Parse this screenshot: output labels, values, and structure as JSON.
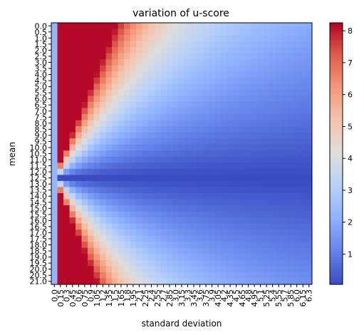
{
  "chart_data": {
    "type": "heatmap",
    "title": "variation of u-score",
    "xlabel": "standard deviation",
    "ylabel": "mean",
    "colormap": "coolwarm",
    "x_tick_labels": [
      "0.0",
      "0.15",
      "0.3",
      "0.45",
      "0.6",
      "0.75",
      "0.9",
      "1.05",
      "1.2",
      "1.35",
      "1.5",
      "1.65",
      "1.8",
      "1.95",
      "2.1",
      "2.25",
      "2.4",
      "2.55",
      "2.7",
      "2.85",
      "3.0",
      "3.15",
      "3.3",
      "3.45",
      "3.6",
      "3.75",
      "3.9",
      "4.05",
      "4.2",
      "4.35",
      "4.5",
      "4.65",
      "4.8",
      "4.95",
      "5.1",
      "5.25",
      "5.4",
      "5.55",
      "5.7",
      "5.85",
      "6.0",
      "6.15",
      "6.3"
    ],
    "y_tick_labels": [
      "0.0",
      "0.5",
      "1.0",
      "1.5",
      "2.0",
      "2.5",
      "3.0",
      "3.5",
      "4.0",
      "4.5",
      "5.0",
      "5.5",
      "6.0",
      "6.5",
      "7.0",
      "7.5",
      "8.0",
      "8.5",
      "9.0",
      "9.5",
      "10.0",
      "10.5",
      "11.0",
      "11.5",
      "12.0",
      "12.5",
      "13.0",
      "13.5",
      "14.0",
      "14.5",
      "15.0",
      "15.5",
      "16.0",
      "16.5",
      "17.0",
      "17.5",
      "18.0",
      "18.5",
      "19.0",
      "19.5",
      "20.0",
      "20.5",
      "21.0"
    ],
    "colorbar": {
      "ticks": [
        "1",
        "2",
        "3",
        "4",
        "5",
        "6",
        "7",
        "8"
      ],
      "min": 0.05,
      "max": 8.25
    },
    "center_mean": 12.5,
    "background_level": 2.25,
    "peak_value": 8.2,
    "grid": false,
    "legend": "colorbar-right",
    "colors": {
      "low": "#3b4cc0",
      "mid": "#dddddd",
      "high": "#b40426"
    }
  }
}
